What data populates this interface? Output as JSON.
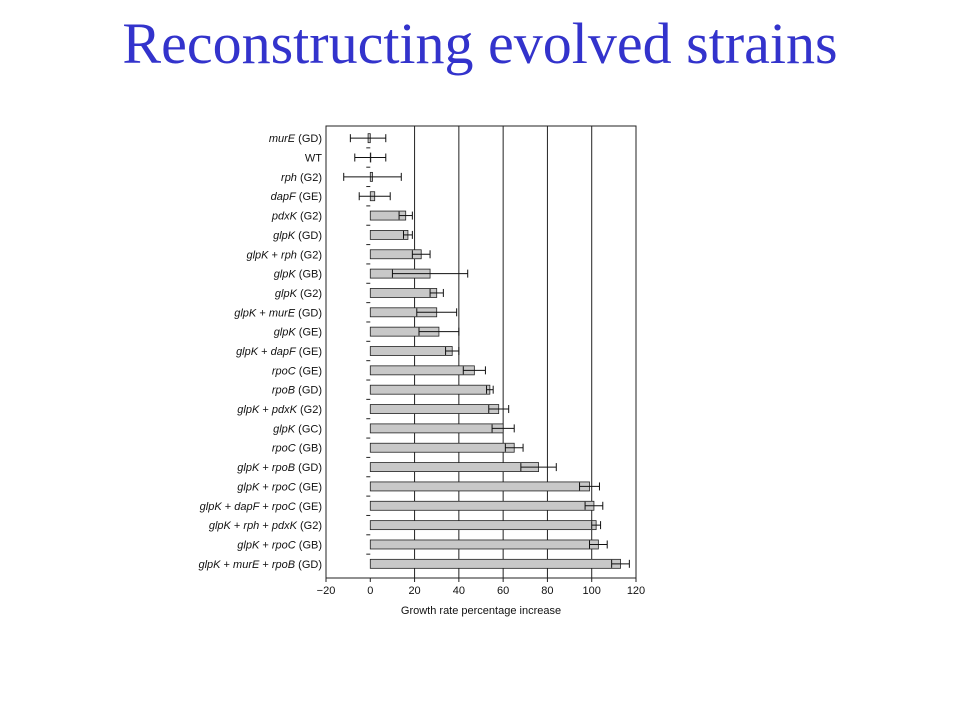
{
  "title": "Reconstructing evolved strains",
  "colors": {
    "title": "#3333cc",
    "bar_fill": "#c8c8c8",
    "bar_stroke": "#222222",
    "axis": "#222222"
  },
  "chart_data": {
    "type": "bar",
    "orientation": "horizontal",
    "categories": [
      "murE (GD)",
      "WT",
      "rph (G2)",
      "dapF (GE)",
      "pdxK (G2)",
      "glpK (GD)",
      "glpK + rph (G2)",
      "glpK (GB)",
      "glpK (G2)",
      "glpK + murE (GD)",
      "glpK (GE)",
      "glpK + dapF (GE)",
      "rpoC (GE)",
      "rpoB (GD)",
      "glpK + pdxK (G2)",
      "glpK (GC)",
      "rpoC (GB)",
      "glpK + rpoB (GD)",
      "glpK + rpoC (GE)",
      "glpK + dapF + rpoC (GE)",
      "glpK + rph + pdxK (G2)",
      "glpK + rpoC (GB)",
      "glpK + murE + rpoB (GD)"
    ],
    "values": [
      -1,
      0,
      1,
      2,
      16,
      17,
      23,
      27,
      30,
      30,
      31,
      37,
      47,
      54,
      58,
      60,
      65,
      76,
      99,
      101,
      102,
      103,
      113
    ],
    "error_bars": [
      8,
      7,
      13,
      7,
      3,
      2,
      4,
      17,
      3,
      9,
      9,
      3,
      5,
      1.5,
      4.5,
      5,
      4,
      8,
      4.5,
      4,
      2,
      4,
      4
    ],
    "xlabel": "Growth rate percentage increase",
    "ylabel": "",
    "xlim": [
      -20,
      120
    ],
    "xticks": [
      -20,
      0,
      20,
      40,
      60,
      80,
      100,
      120
    ],
    "xtick_labels": [
      "−20",
      "0",
      "20",
      "40",
      "60",
      "80",
      "100",
      "120"
    ],
    "grid": true,
    "gridlines": [
      20,
      40,
      60,
      80,
      100
    ],
    "legend": false
  }
}
